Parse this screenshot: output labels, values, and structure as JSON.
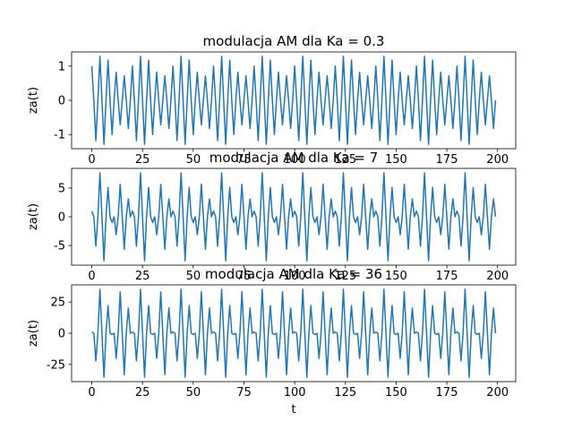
{
  "chart_data": [
    {
      "type": "line",
      "title": "modulacja AM dla Ka = 0.3",
      "ylabel": "za(t)",
      "color": "#1f77b4",
      "xlim": [
        -9.95,
        208.95
      ],
      "xticks": [
        0,
        25,
        50,
        75,
        100,
        125,
        150,
        175,
        200
      ],
      "ylim": [
        -1.4135,
        1.4135
      ],
      "yticks": [
        -1,
        0,
        1
      ],
      "x": [
        0,
        1,
        2,
        3,
        4,
        5,
        6,
        7,
        8,
        9,
        10,
        11,
        12,
        13,
        14,
        15,
        16,
        17,
        18,
        19,
        20,
        21,
        22,
        23,
        24,
        25,
        26,
        27,
        28,
        29,
        30,
        31,
        32,
        33,
        34,
        35,
        36,
        37,
        38,
        39,
        40,
        41,
        42,
        43,
        44,
        45,
        46,
        47,
        48,
        49,
        50,
        51,
        52,
        53,
        54,
        55,
        56,
        57,
        58,
        59,
        60,
        61,
        62,
        63,
        64,
        65,
        66,
        67,
        68,
        69,
        70,
        71,
        72,
        73,
        74,
        75,
        76,
        77,
        78,
        79,
        80,
        81,
        82,
        83,
        84,
        85,
        86,
        87,
        88,
        89,
        90,
        91,
        92,
        93,
        94,
        95,
        96,
        97,
        98,
        99,
        100,
        101,
        102,
        103,
        104,
        105,
        106,
        107,
        108,
        109,
        110,
        111,
        112,
        113,
        114,
        115,
        116,
        117,
        118,
        119,
        120,
        121,
        122,
        123,
        124,
        125,
        126,
        127,
        128,
        129,
        130,
        131,
        132,
        133,
        134,
        135,
        136,
        137,
        138,
        139,
        140,
        141,
        142,
        143,
        144,
        145,
        146,
        147,
        148,
        149,
        150,
        151,
        152,
        153,
        154,
        155,
        156,
        157,
        158,
        159,
        160,
        161,
        162,
        163,
        164,
        165,
        166,
        167,
        168,
        169,
        170,
        171,
        172,
        173,
        174,
        175,
        176,
        177,
        178,
        179,
        180,
        181,
        182,
        183,
        184,
        185,
        186,
        187,
        188,
        189,
        190,
        191,
        192,
        193,
        194,
        195,
        196,
        197,
        198,
        199
      ],
      "values": [
        1,
        0,
        -1.176,
        0,
        1.285,
        0,
        -1.285,
        0,
        1.176,
        0,
        -1,
        0,
        0.824,
        0,
        -0.715,
        0,
        0.715,
        0,
        -0.824,
        0,
        1,
        0,
        -1.176,
        0,
        1.285,
        0,
        -1.285,
        0,
        1.176,
        0,
        -1,
        0,
        0.824,
        0,
        -0.715,
        0,
        0.715,
        0,
        -0.824,
        0,
        1,
        0,
        -1.176,
        0,
        1.285,
        0,
        -1.285,
        0,
        1.176,
        0,
        -1,
        0,
        0.824,
        0,
        -0.715,
        0,
        0.715,
        0,
        -0.824,
        0,
        1,
        0,
        -1.176,
        0,
        1.285,
        0,
        -1.285,
        0,
        1.176,
        0,
        -1,
        0,
        0.824,
        0,
        -0.715,
        0,
        0.715,
        0,
        -0.824,
        0,
        1,
        0,
        -1.176,
        0,
        1.285,
        0,
        -1.285,
        0,
        1.176,
        0,
        -1,
        0,
        0.824,
        0,
        -0.715,
        0,
        0.715,
        0,
        -0.824,
        0,
        1,
        0,
        -1.176,
        0,
        1.285,
        0,
        -1.285,
        0,
        1.176,
        0,
        -1,
        0,
        0.824,
        0,
        -0.715,
        0,
        0.715,
        0,
        -0.824,
        0,
        1,
        0,
        -1.176,
        0,
        1.285,
        0,
        -1.285,
        0,
        1.176,
        0,
        -1,
        0,
        0.824,
        0,
        -0.715,
        0,
        0.715,
        0,
        -0.824,
        0,
        1,
        0,
        -1.176,
        0,
        1.285,
        0,
        -1.285,
        0,
        1.176,
        0,
        -1,
        0,
        0.824,
        0,
        -0.715,
        0,
        0.715,
        0,
        -0.824,
        0,
        1,
        0,
        -1.176,
        0,
        1.285,
        0,
        -1.285,
        0,
        1.176,
        0,
        -1,
        0,
        0.824,
        0,
        -0.715,
        0,
        0.715,
        0,
        -0.824,
        0,
        1,
        0,
        -1.176,
        0,
        1.285,
        0,
        -1.285,
        0,
        1.176,
        0,
        -1,
        0,
        0.824,
        0,
        -0.715,
        0,
        0.715,
        0,
        -0.824,
        0
      ]
    },
    {
      "type": "line",
      "title": "modulacja AM dla Ka = 7",
      "ylabel": "za(t)",
      "color": "#1f77b4",
      "xlim": [
        -9.95,
        208.95
      ],
      "xticks": [
        0,
        25,
        50,
        75,
        100,
        125,
        150,
        175,
        200
      ],
      "ylim": [
        -8.42,
        8.42
      ],
      "yticks": [
        -5,
        0,
        5
      ],
      "x": [
        0,
        1,
        2,
        3,
        4,
        5,
        6,
        7,
        8,
        9,
        10,
        11,
        12,
        13,
        14,
        15,
        16,
        17,
        18,
        19,
        20,
        21,
        22,
        23,
        24,
        25,
        26,
        27,
        28,
        29,
        30,
        31,
        32,
        33,
        34,
        35,
        36,
        37,
        38,
        39,
        40,
        41,
        42,
        43,
        44,
        45,
        46,
        47,
        48,
        49,
        50,
        51,
        52,
        53,
        54,
        55,
        56,
        57,
        58,
        59,
        60,
        61,
        62,
        63,
        64,
        65,
        66,
        67,
        68,
        69,
        70,
        71,
        72,
        73,
        74,
        75,
        76,
        77,
        78,
        79,
        80,
        81,
        82,
        83,
        84,
        85,
        86,
        87,
        88,
        89,
        90,
        91,
        92,
        93,
        94,
        95,
        96,
        97,
        98,
        99,
        100,
        101,
        102,
        103,
        104,
        105,
        106,
        107,
        108,
        109,
        110,
        111,
        112,
        113,
        114,
        115,
        116,
        117,
        118,
        119,
        120,
        121,
        122,
        123,
        124,
        125,
        126,
        127,
        128,
        129,
        130,
        131,
        132,
        133,
        134,
        135,
        136,
        137,
        138,
        139,
        140,
        141,
        142,
        143,
        144,
        145,
        146,
        147,
        148,
        149,
        150,
        151,
        152,
        153,
        154,
        155,
        156,
        157,
        158,
        159,
        160,
        161,
        162,
        163,
        164,
        165,
        166,
        167,
        168,
        169,
        170,
        171,
        172,
        173,
        174,
        175,
        176,
        177,
        178,
        179,
        180,
        181,
        182,
        183,
        184,
        185,
        186,
        187,
        188,
        189,
        190,
        191,
        192,
        193,
        194,
        195,
        196,
        197,
        198,
        199
      ],
      "values": [
        1,
        0,
        -5.115,
        0,
        7.657,
        0,
        -7.657,
        0,
        5.115,
        0,
        -1,
        0,
        -3.115,
        0,
        5.657,
        0,
        -5.657,
        0,
        3.115,
        0,
        1,
        0,
        -5.115,
        0,
        7.657,
        0,
        -7.657,
        0,
        5.115,
        0,
        -1,
        0,
        -3.115,
        0,
        5.657,
        0,
        -5.657,
        0,
        3.115,
        0,
        1,
        0,
        -5.115,
        0,
        7.657,
        0,
        -7.657,
        0,
        5.115,
        0,
        -1,
        0,
        -3.115,
        0,
        5.657,
        0,
        -5.657,
        0,
        3.115,
        0,
        1,
        0,
        -5.115,
        0,
        7.657,
        0,
        -7.657,
        0,
        5.115,
        0,
        -1,
        0,
        -3.115,
        0,
        5.657,
        0,
        -5.657,
        0,
        3.115,
        0,
        1,
        0,
        -5.115,
        0,
        7.657,
        0,
        -7.657,
        0,
        5.115,
        0,
        -1,
        0,
        -3.115,
        0,
        5.657,
        0,
        -5.657,
        0,
        3.115,
        0,
        1,
        0,
        -5.115,
        0,
        7.657,
        0,
        -7.657,
        0,
        5.115,
        0,
        -1,
        0,
        -3.115,
        0,
        5.657,
        0,
        -5.657,
        0,
        3.115,
        0,
        1,
        0,
        -5.115,
        0,
        7.657,
        0,
        -7.657,
        0,
        5.115,
        0,
        -1,
        0,
        -3.115,
        0,
        5.657,
        0,
        -5.657,
        0,
        3.115,
        0,
        1,
        0,
        -5.115,
        0,
        7.657,
        0,
        -7.657,
        0,
        5.115,
        0,
        -1,
        0,
        -3.115,
        0,
        5.657,
        0,
        -5.657,
        0,
        3.115,
        0,
        1,
        0,
        -5.115,
        0,
        7.657,
        0,
        -7.657,
        0,
        5.115,
        0,
        -1,
        0,
        -3.115,
        0,
        5.657,
        0,
        -5.657,
        0,
        3.115,
        0,
        1,
        0,
        -5.115,
        0,
        7.657,
        0,
        -7.657,
        0,
        5.115,
        0,
        -1,
        0,
        -3.115,
        0,
        5.657,
        0,
        -5.657,
        0,
        3.115,
        0
      ]
    },
    {
      "type": "line",
      "title": "modulacja AM dla Ka = 36",
      "ylabel": "za(t)",
      "xlabel": "t",
      "color": "#1f77b4",
      "xlim": [
        -9.95,
        208.95
      ],
      "xticks": [
        0,
        25,
        50,
        75,
        100,
        125,
        150,
        175,
        200
      ],
      "ylim": [
        -38.76,
        38.76
      ],
      "yticks": [
        -25,
        0,
        25
      ],
      "x": [
        0,
        1,
        2,
        3,
        4,
        5,
        6,
        7,
        8,
        9,
        10,
        11,
        12,
        13,
        14,
        15,
        16,
        17,
        18,
        19,
        20,
        21,
        22,
        23,
        24,
        25,
        26,
        27,
        28,
        29,
        30,
        31,
        32,
        33,
        34,
        35,
        36,
        37,
        38,
        39,
        40,
        41,
        42,
        43,
        44,
        45,
        46,
        47,
        48,
        49,
        50,
        51,
        52,
        53,
        54,
        55,
        56,
        57,
        58,
        59,
        60,
        61,
        62,
        63,
        64,
        65,
        66,
        67,
        68,
        69,
        70,
        71,
        72,
        73,
        74,
        75,
        76,
        77,
        78,
        79,
        80,
        81,
        82,
        83,
        84,
        85,
        86,
        87,
        88,
        89,
        90,
        91,
        92,
        93,
        94,
        95,
        96,
        97,
        98,
        99,
        100,
        101,
        102,
        103,
        104,
        105,
        106,
        107,
        108,
        109,
        110,
        111,
        112,
        113,
        114,
        115,
        116,
        117,
        118,
        119,
        120,
        121,
        122,
        123,
        124,
        125,
        126,
        127,
        128,
        129,
        130,
        131,
        132,
        133,
        134,
        135,
        136,
        137,
        138,
        139,
        140,
        141,
        142,
        143,
        144,
        145,
        146,
        147,
        148,
        149,
        150,
        151,
        152,
        153,
        154,
        155,
        156,
        157,
        158,
        159,
        160,
        161,
        162,
        163,
        164,
        165,
        166,
        167,
        168,
        169,
        170,
        171,
        172,
        173,
        174,
        175,
        176,
        177,
        178,
        179,
        180,
        181,
        182,
        183,
        184,
        185,
        186,
        187,
        188,
        189,
        190,
        191,
        192,
        193,
        194,
        195,
        196,
        197,
        198,
        199
      ],
      "values": [
        1,
        0,
        -22.16,
        0,
        35.24,
        0,
        -35.24,
        0,
        22.16,
        0,
        -1,
        0,
        -20.16,
        0,
        33.24,
        0,
        -33.24,
        0,
        20.16,
        0,
        1,
        0,
        -22.16,
        0,
        35.24,
        0,
        -35.24,
        0,
        22.16,
        0,
        -1,
        0,
        -20.16,
        0,
        33.24,
        0,
        -33.24,
        0,
        20.16,
        0,
        1,
        0,
        -22.16,
        0,
        35.24,
        0,
        -35.24,
        0,
        22.16,
        0,
        -1,
        0,
        -20.16,
        0,
        33.24,
        0,
        -33.24,
        0,
        20.16,
        0,
        1,
        0,
        -22.16,
        0,
        35.24,
        0,
        -35.24,
        0,
        22.16,
        0,
        -1,
        0,
        -20.16,
        0,
        33.24,
        0,
        -33.24,
        0,
        20.16,
        0,
        1,
        0,
        -22.16,
        0,
        35.24,
        0,
        -35.24,
        0,
        22.16,
        0,
        -1,
        0,
        -20.16,
        0,
        33.24,
        0,
        -33.24,
        0,
        20.16,
        0,
        1,
        0,
        -22.16,
        0,
        35.24,
        0,
        -35.24,
        0,
        22.16,
        0,
        -1,
        0,
        -20.16,
        0,
        33.24,
        0,
        -33.24,
        0,
        20.16,
        0,
        1,
        0,
        -22.16,
        0,
        35.24,
        0,
        -35.24,
        0,
        22.16,
        0,
        -1,
        0,
        -20.16,
        0,
        33.24,
        0,
        -33.24,
        0,
        20.16,
        0,
        1,
        0,
        -22.16,
        0,
        35.24,
        0,
        -35.24,
        0,
        22.16,
        0,
        -1,
        0,
        -20.16,
        0,
        33.24,
        0,
        -33.24,
        0,
        20.16,
        0,
        1,
        0,
        -22.16,
        0,
        35.24,
        0,
        -35.24,
        0,
        22.16,
        0,
        -1,
        0,
        -20.16,
        0,
        33.24,
        0,
        -33.24,
        0,
        20.16,
        0,
        1,
        0,
        -22.16,
        0,
        35.24,
        0,
        -35.24,
        0,
        22.16,
        0,
        -1,
        0,
        -20.16,
        0,
        33.24,
        0,
        -33.24,
        0,
        20.16,
        0
      ]
    }
  ]
}
